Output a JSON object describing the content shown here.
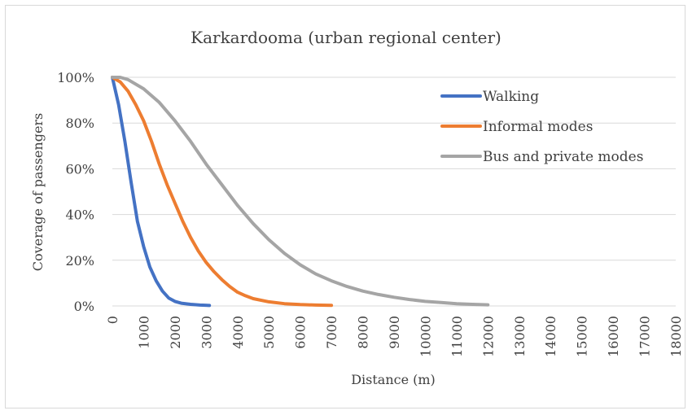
{
  "chart_data": {
    "type": "line",
    "title": "Karkardooma (urban regional center)",
    "xlabel": "Distance (m)",
    "ylabel": "Coverage of passengers",
    "xlim": [
      0,
      18000
    ],
    "ylim": [
      0,
      100
    ],
    "x_ticks": [
      "0",
      "1000",
      "2000",
      "3000",
      "4000",
      "5000",
      "6000",
      "7000",
      "8000",
      "9000",
      "10000",
      "11000",
      "12000",
      "13000",
      "14000",
      "15000",
      "16000",
      "17000",
      "18000"
    ],
    "y_ticks": [
      "0%",
      "20%",
      "40%",
      "60%",
      "80%",
      "100%"
    ],
    "grid": "horizontal",
    "legend_position": "top-right",
    "series": [
      {
        "name": "Walking",
        "color": "#4472C4",
        "points": [
          [
            0,
            100
          ],
          [
            200,
            88
          ],
          [
            400,
            72
          ],
          [
            600,
            54
          ],
          [
            800,
            37
          ],
          [
            1000,
            26
          ],
          [
            1200,
            17
          ],
          [
            1400,
            11
          ],
          [
            1600,
            6.5
          ],
          [
            1800,
            3.5
          ],
          [
            2000,
            2
          ],
          [
            2200,
            1.2
          ],
          [
            2500,
            0.7
          ],
          [
            2800,
            0.4
          ],
          [
            3100,
            0.2
          ]
        ]
      },
      {
        "name": "Informal modes",
        "color": "#ED7D31",
        "points": [
          [
            0,
            100
          ],
          [
            250,
            98
          ],
          [
            500,
            94
          ],
          [
            750,
            88
          ],
          [
            1000,
            81
          ],
          [
            1250,
            72
          ],
          [
            1500,
            62
          ],
          [
            1750,
            53
          ],
          [
            2000,
            45
          ],
          [
            2250,
            37
          ],
          [
            2500,
            30
          ],
          [
            2750,
            24
          ],
          [
            3000,
            19
          ],
          [
            3250,
            15
          ],
          [
            3500,
            11.5
          ],
          [
            3750,
            8.5
          ],
          [
            4000,
            6
          ],
          [
            4250,
            4.5
          ],
          [
            4500,
            3.2
          ],
          [
            5000,
            1.8
          ],
          [
            5500,
            1
          ],
          [
            6000,
            0.6
          ],
          [
            6500,
            0.4
          ],
          [
            7000,
            0.3
          ]
        ]
      },
      {
        "name": "Bus and private modes",
        "color": "#A5A5A5",
        "points": [
          [
            0,
            100
          ],
          [
            250,
            100
          ],
          [
            500,
            99
          ],
          [
            1000,
            95
          ],
          [
            1500,
            89
          ],
          [
            2000,
            81
          ],
          [
            2500,
            72
          ],
          [
            3000,
            62
          ],
          [
            3500,
            53
          ],
          [
            4000,
            44
          ],
          [
            4500,
            36
          ],
          [
            5000,
            29
          ],
          [
            5500,
            23
          ],
          [
            6000,
            18
          ],
          [
            6500,
            14
          ],
          [
            7000,
            11
          ],
          [
            7500,
            8.5
          ],
          [
            8000,
            6.5
          ],
          [
            8500,
            5
          ],
          [
            9000,
            3.8
          ],
          [
            9500,
            2.8
          ],
          [
            10000,
            2
          ],
          [
            10500,
            1.5
          ],
          [
            11000,
            1
          ],
          [
            11500,
            0.7
          ],
          [
            12000,
            0.5
          ]
        ]
      }
    ]
  }
}
